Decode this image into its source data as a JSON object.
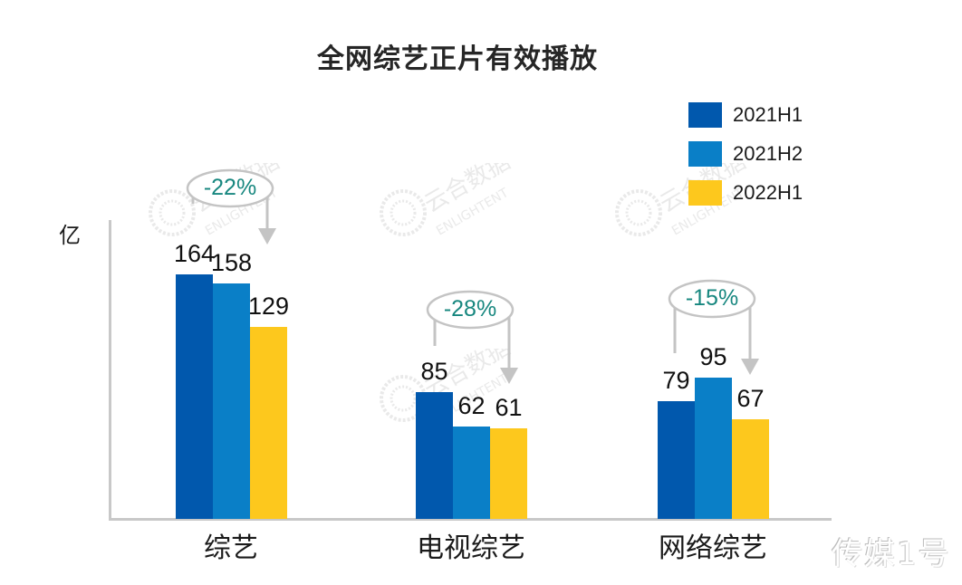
{
  "title": "全网综艺正片有效播放",
  "y_unit_label": "亿",
  "watermark": "传媒1号",
  "brand_watermark": {
    "cn": "云合数据",
    "en": "ENLIGHTENT"
  },
  "colors": {
    "2021H1": "#0158ad",
    "2021H2": "#0a7fc7",
    "2022H1": "#fdc81d",
    "axis": "#c8c8c8",
    "annotation_text": "#17877f",
    "annotation_stroke": "#c4c4c4"
  },
  "legend": [
    {
      "label": "2021H1",
      "color": "#0158ad"
    },
    {
      "label": "2021H2",
      "color": "#0a7fc7"
    },
    {
      "label": "2022H1",
      "color": "#fdc81d"
    }
  ],
  "chart_data": {
    "type": "bar",
    "title": "全网综艺正片有效播放",
    "xlabel": "",
    "ylabel": "亿",
    "categories": [
      "综艺",
      "电视综艺",
      "网络综艺"
    ],
    "series": [
      {
        "name": "2021H1",
        "values": [
          164,
          85,
          79
        ]
      },
      {
        "name": "2021H2",
        "values": [
          158,
          62,
          95
        ]
      },
      {
        "name": "2022H1",
        "values": [
          129,
          61,
          67
        ]
      }
    ],
    "annotations": [
      {
        "category": "综艺",
        "text": "-22%",
        "from": "2021H1",
        "to": "2022H1"
      },
      {
        "category": "电视综艺",
        "text": "-28%",
        "from": "2021H1",
        "to": "2022H1"
      },
      {
        "category": "网络综艺",
        "text": "-15%",
        "from": "2021H1",
        "to": "2022H1"
      }
    ],
    "legend_position": "top-right",
    "grid": false,
    "ylim": [
      0,
      200
    ]
  }
}
